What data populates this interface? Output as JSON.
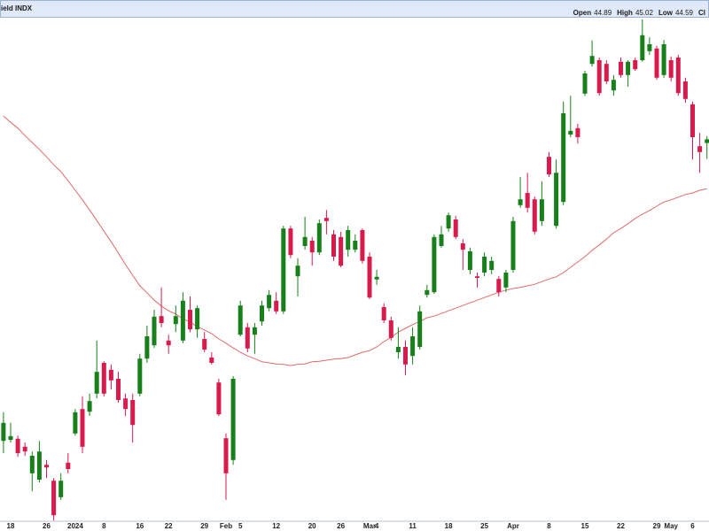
{
  "chart_data": {
    "type": "candlestick",
    "title": "ield INDX",
    "readout": [
      {
        "label": "Open",
        "value": 44.89
      },
      {
        "label": "High",
        "value": 45.02
      },
      {
        "label": "Low",
        "value": 44.59
      },
      {
        "label": "Cl"
      }
    ],
    "categories": [
      null,
      "18",
      null,
      null,
      null,
      null,
      "26",
      null,
      null,
      null,
      "2024",
      null,
      null,
      null,
      "8",
      null,
      null,
      null,
      null,
      "16",
      null,
      null,
      null,
      "22",
      null,
      null,
      null,
      null,
      "29",
      null,
      null,
      "Feb",
      null,
      "5",
      null,
      null,
      null,
      null,
      "12",
      null,
      null,
      null,
      null,
      "20",
      null,
      null,
      null,
      "26",
      null,
      null,
      null,
      "Mar",
      "4",
      null,
      null,
      null,
      null,
      "11",
      null,
      null,
      null,
      null,
      "18",
      null,
      null,
      null,
      null,
      "25",
      null,
      null,
      null,
      "Apr",
      null,
      null,
      null,
      null,
      "8",
      null,
      null,
      null,
      null,
      "15",
      null,
      null,
      null,
      null,
      "22",
      null,
      null,
      null,
      null,
      "29",
      null,
      "May",
      null,
      null,
      "6",
      null,
      null
    ],
    "open": [
      39.28,
      39.3,
      39.32,
      39.17,
      38.67,
      38.55,
      38.83,
      38.53,
      38.22,
      38.87,
      39.42,
      39.88,
      39.83,
      40.17,
      40.75,
      40.62,
      40.45,
      40.08,
      40.05,
      40.17,
      40.83,
      41.08,
      41.63,
      41.17,
      41.48,
      41.17,
      41.75,
      41.38,
      41.2,
      40.85,
      40.38,
      39.33,
      38.92,
      41.28,
      41.42,
      41.28,
      41.53,
      41.78,
      41.92,
      41.72,
      43.28,
      42.38,
      42.95,
      43.05,
      42.83,
      43.48,
      43.17,
      43.12,
      42.88,
      42.88,
      43.25,
      42.75,
      42.32,
      41.8,
      41.55,
      40.95,
      41.05,
      40.88,
      41.05,
      42.03,
      42.08,
      42.95,
      43.28,
      43.45,
      43.0,
      42.5,
      42.38,
      42.45,
      42.5,
      42.33,
      42.17,
      42.5,
      43.72,
      43.95,
      43.83,
      43.42,
      44.63,
      43.33,
      43.78,
      45.05,
      45.17,
      45.82,
      46.38,
      46.45,
      46.38,
      45.88,
      46.42,
      46.17,
      46.45,
      46.45,
      46.62,
      46.67,
      46.17,
      46.45,
      46.5,
      46.05,
      45.62,
      44.83,
      44.89
    ],
    "high": [
      39.82,
      39.62,
      39.38,
      39.25,
      39.08,
      39.28,
      38.92,
      38.58,
      38.67,
      39.05,
      39.88,
      40.12,
      40.17,
      41.17,
      40.78,
      40.72,
      40.58,
      40.17,
      40.17,
      40.92,
      41.45,
      41.75,
      42.17,
      41.28,
      41.83,
      42.08,
      42.0,
      41.83,
      41.33,
      40.95,
      40.45,
      39.42,
      40.5,
      41.92,
      41.5,
      41.5,
      41.92,
      42.12,
      42.08,
      43.33,
      43.33,
      42.72,
      43.5,
      43.12,
      43.45,
      43.63,
      43.25,
      43.22,
      43.33,
      43.17,
      43.28,
      42.83,
      42.5,
      41.87,
      41.62,
      41.42,
      41.17,
      41.42,
      41.83,
      42.22,
      43.17,
      43.33,
      43.58,
      43.52,
      43.08,
      42.92,
      42.45,
      42.83,
      42.75,
      42.38,
      42.5,
      43.5,
      44.25,
      44.33,
      43.88,
      44.17,
      44.72,
      44.58,
      45.67,
      45.78,
      45.25,
      46.25,
      46.82,
      46.5,
      46.45,
      46.17,
      46.5,
      46.45,
      46.5,
      47.22,
      46.88,
      46.72,
      46.83,
      46.52,
      46.55,
      46.12,
      45.67,
      45.08,
      45.02
    ],
    "low": [
      39.05,
      39.25,
      38.98,
      39.0,
      38.33,
      38.5,
      38.58,
      37.78,
      38.17,
      38.67,
      39.38,
      39.05,
      39.75,
      40.08,
      40.12,
      40.25,
      40.0,
      39.75,
      39.25,
      40.12,
      40.75,
      41.03,
      41.42,
      40.92,
      41.33,
      41.12,
      41.33,
      41.22,
      40.95,
      40.72,
      39.75,
      38.17,
      38.83,
      41.25,
      40.95,
      40.92,
      41.45,
      41.72,
      41.67,
      41.67,
      42.72,
      42.0,
      42.88,
      42.58,
      42.78,
      43.17,
      42.67,
      42.55,
      42.75,
      42.83,
      42.62,
      41.95,
      42.22,
      41.5,
      41.17,
      40.83,
      40.52,
      40.72,
      41.0,
      41.98,
      42.05,
      42.92,
      43.22,
      43.08,
      42.5,
      42.42,
      42.17,
      42.38,
      42.42,
      42.0,
      42.08,
      42.45,
      43.67,
      43.58,
      43.17,
      43.33,
      44.25,
      43.28,
      43.72,
      45.0,
      44.88,
      45.78,
      46.33,
      45.78,
      46.0,
      45.78,
      46.12,
      45.95,
      46.25,
      46.42,
      46.55,
      46.08,
      46.12,
      46.05,
      45.78,
      45.65,
      44.58,
      44.33,
      44.59
    ],
    "close": [
      39.62,
      39.37,
      39.05,
      39.08,
      39.0,
      39.08,
      38.78,
      37.88,
      38.53,
      38.75,
      39.82,
      39.17,
      40.03,
      40.58,
      40.17,
      40.42,
      40.05,
      39.88,
      39.58,
      40.83,
      41.25,
      41.62,
      41.5,
      41.08,
      41.63,
      41.92,
      41.38,
      41.78,
      41.0,
      40.75,
      39.78,
      38.67,
      40.45,
      41.83,
      41.02,
      41.42,
      41.83,
      42.03,
      41.72,
      43.28,
      42.78,
      42.58,
      43.12,
      42.83,
      43.38,
      43.42,
      42.75,
      42.58,
      43.25,
      43.05,
      42.67,
      41.98,
      42.37,
      41.55,
      41.22,
      41.05,
      40.72,
      41.25,
      41.72,
      42.12,
      43.12,
      43.17,
      43.53,
      43.12,
      42.88,
      42.85,
      42.35,
      42.75,
      42.67,
      42.08,
      42.45,
      43.42,
      43.83,
      43.67,
      43.22,
      43.83,
      44.3,
      44.33,
      45.45,
      45.12,
      45.0,
      46.2,
      46.53,
      45.83,
      46.05,
      46.08,
      46.17,
      46.42,
      46.28,
      46.92,
      46.75,
      46.12,
      46.75,
      46.12,
      45.83,
      45.72,
      45.0,
      44.72,
      44.96
    ],
    "up_color": "#17801a",
    "down_color": "#d81b4c",
    "overlays": [
      {
        "color": "#e06a6a",
        "values": [
          45.4,
          45.28,
          45.17,
          45.03,
          44.9,
          44.77,
          44.63,
          44.48,
          44.35,
          44.18,
          44.0,
          43.82,
          43.63,
          43.43,
          43.23,
          43.03,
          42.82,
          42.6,
          42.4,
          42.2,
          42.07,
          41.93,
          41.82,
          41.73,
          41.67,
          41.58,
          41.52,
          41.43,
          41.37,
          41.3,
          41.2,
          41.12,
          41.03,
          40.95,
          40.88,
          40.83,
          40.77,
          40.75,
          40.73,
          40.72,
          40.7,
          40.72,
          40.73,
          40.77,
          40.78,
          40.8,
          40.82,
          40.83,
          40.85,
          40.9,
          40.95,
          40.98,
          41.05,
          41.15,
          41.23,
          41.33,
          41.4,
          41.47,
          41.53,
          41.6,
          41.63,
          41.68,
          41.73,
          41.78,
          41.83,
          41.88,
          41.93,
          41.98,
          42.03,
          42.08,
          42.12,
          42.15,
          42.17,
          42.2,
          42.23,
          42.28,
          42.33,
          42.37,
          42.45,
          42.55,
          42.65,
          42.75,
          42.87,
          42.97,
          43.08,
          43.2,
          43.28,
          43.37,
          43.47,
          43.55,
          43.62,
          43.7,
          43.78,
          43.82,
          43.87,
          43.92,
          43.95,
          44.0,
          44.03
        ]
      }
    ],
    "ylim": [
      37.75,
      47.25
    ],
    "grid": false
  }
}
